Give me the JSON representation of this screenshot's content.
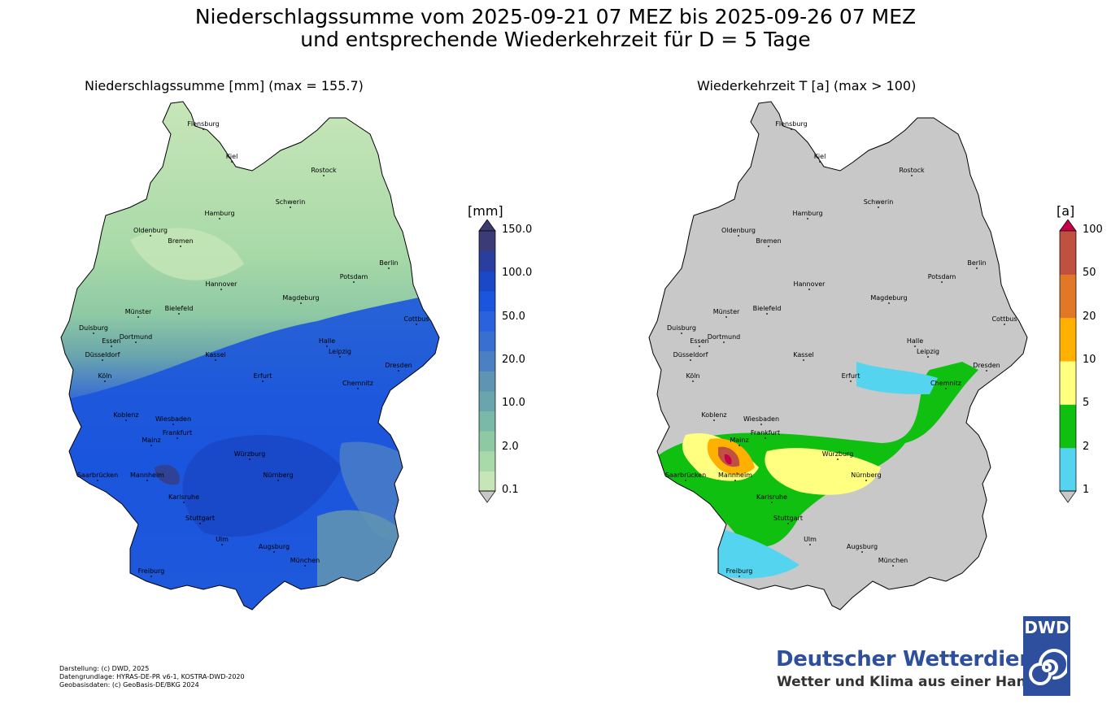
{
  "title": {
    "line1": "Niederschlagssumme vom 2025-09-21 07 MEZ bis 2025-09-26 07 MEZ",
    "line2": "und entsprechende Wiederkehrzeit für D = 5 Tage"
  },
  "left_panel": {
    "subtitle": "Niederschlagssumme [mm] (max = 155.7)",
    "colorbar": {
      "unit": "[mm]",
      "ticks": [
        "150.0",
        "100.0",
        "50.0",
        "20.0",
        "10.0",
        "2.0",
        "0.1"
      ],
      "colors": [
        "#c7e6b8",
        "#a8d9a8",
        "#8ec9a4",
        "#7ab8a8",
        "#6aa5ad",
        "#5f94b3",
        "#4c80c4",
        "#3a6fd2",
        "#2a62de",
        "#1b55dd",
        "#1a48c7",
        "#2a3e9f",
        "#3b3b78"
      ],
      "under_color": "#c8c8c8",
      "over_color": "#3b3b6e"
    }
  },
  "right_panel": {
    "subtitle": "Wiederkehrzeit T [a] (max > 100)",
    "colorbar": {
      "unit": "[a]",
      "ticks": [
        "100",
        "50",
        "20",
        "10",
        "5",
        "2",
        "1"
      ],
      "colors": [
        "#55d4f0",
        "#10c010",
        "#ffff80",
        "#ffb000",
        "#e07828",
        "#c05040"
      ],
      "under_color": "#c8c8c8",
      "over_color": "#c8004a"
    }
  },
  "cities": [
    {
      "name": "Flensburg"
    },
    {
      "name": "Kiel"
    },
    {
      "name": "Rostock"
    },
    {
      "name": "Schwerin"
    },
    {
      "name": "Hamburg"
    },
    {
      "name": "Oldenburg"
    },
    {
      "name": "Bremen"
    },
    {
      "name": "Berlin"
    },
    {
      "name": "Potsdam"
    },
    {
      "name": "Hannover"
    },
    {
      "name": "Magdeburg"
    },
    {
      "name": "Münster"
    },
    {
      "name": "Bielefeld"
    },
    {
      "name": "Duisburg"
    },
    {
      "name": "Essen"
    },
    {
      "name": "Dortmund"
    },
    {
      "name": "Cottbus"
    },
    {
      "name": "Düsseldorf"
    },
    {
      "name": "Halle"
    },
    {
      "name": "Leipzig"
    },
    {
      "name": "Kassel"
    },
    {
      "name": "Köln"
    },
    {
      "name": "Dresden"
    },
    {
      "name": "Erfurt"
    },
    {
      "name": "Chemnitz"
    },
    {
      "name": "Koblenz"
    },
    {
      "name": "Wiesbaden"
    },
    {
      "name": "Frankfurt"
    },
    {
      "name": "Mainz"
    },
    {
      "name": "Würzburg"
    },
    {
      "name": "Saarbrücken"
    },
    {
      "name": "Mannheim"
    },
    {
      "name": "Nürnberg"
    },
    {
      "name": "Karlsruhe"
    },
    {
      "name": "Stuttgart"
    },
    {
      "name": "Ulm"
    },
    {
      "name": "Augsburg"
    },
    {
      "name": "München"
    },
    {
      "name": "Freiburg"
    }
  ],
  "credits": [
    "Darstellung: (c) DWD, 2025",
    "Datengrundlage: HYRAS-DE-PR v6-1, KOSTRA-DWD-2020",
    "Geobasisdaten: (c) GeoBasis-DE/BKG 2024"
  ],
  "logo": {
    "name": "Deutscher Wetterdienst",
    "slogan": "Wetter und Klima aus einer Hand",
    "badge": "DWD"
  }
}
